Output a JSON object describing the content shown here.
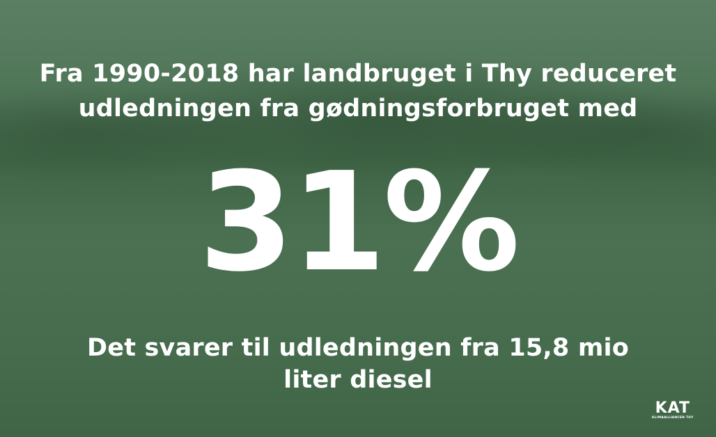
{
  "headline": {
    "lines": [
      "Fra 1990-2018 har landbruget i Thy reduceret",
      "udledningen fra gødningsforbruget med"
    ]
  },
  "stat": "31%",
  "subline": {
    "lines": [
      "Det svarer til udledningen fra 15,8 mio",
      "liter diesel"
    ]
  },
  "logo": {
    "mark": "KAT",
    "name": "KLIMAALLIANCEN THY"
  }
}
